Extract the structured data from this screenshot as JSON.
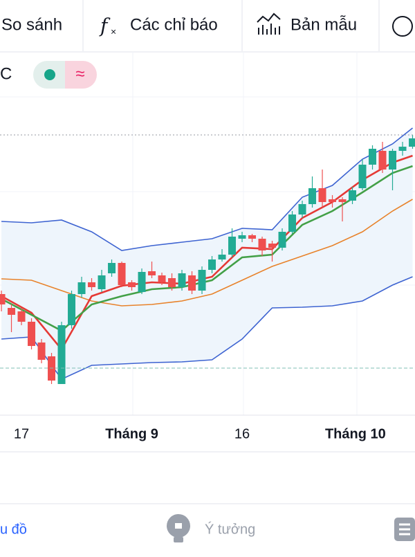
{
  "toolbar": {
    "items": [
      "So sánh",
      "Các chỉ báo",
      "Bản mẫu"
    ]
  },
  "legend": {
    "symbol": "C"
  },
  "chart_data": {
    "type": "candlestick",
    "up_color": "#22ab94",
    "down_color": "#ef4f4f",
    "xlim": [
      -0.14,
      41.24
    ],
    "ylim": [
      0,
      525
    ],
    "xticks": [
      {
        "value": 2,
        "label": "17"
      },
      {
        "value": 13,
        "label": "Tháng 9",
        "bold": true
      },
      {
        "value": 24,
        "label": "16"
      },
      {
        "value": 35.3,
        "label": "Tháng 10",
        "bold": true
      }
    ],
    "candles": [
      {
        "o": 175,
        "h": 180,
        "l": 150,
        "c": 160
      },
      {
        "o": 155,
        "h": 160,
        "l": 120,
        "c": 145
      },
      {
        "o": 150,
        "h": 155,
        "l": 130,
        "c": 135
      },
      {
        "o": 135,
        "h": 140,
        "l": 95,
        "c": 100
      },
      {
        "o": 105,
        "h": 110,
        "l": 75,
        "c": 80
      },
      {
        "o": 85,
        "h": 90,
        "l": 45,
        "c": 50
      },
      {
        "o": 45,
        "h": 135,
        "l": 45,
        "c": 130
      },
      {
        "o": 130,
        "h": 180,
        "l": 125,
        "c": 175
      },
      {
        "o": 175,
        "h": 200,
        "l": 170,
        "c": 192
      },
      {
        "o": 192,
        "h": 198,
        "l": 180,
        "c": 185
      },
      {
        "o": 182,
        "h": 210,
        "l": 178,
        "c": 202
      },
      {
        "o": 205,
        "h": 225,
        "l": 200,
        "c": 220
      },
      {
        "o": 220,
        "h": 222,
        "l": 185,
        "c": 188
      },
      {
        "o": 192,
        "h": 195,
        "l": 180,
        "c": 185
      },
      {
        "o": 178,
        "h": 212,
        "l": 175,
        "c": 207
      },
      {
        "o": 208,
        "h": 222,
        "l": 198,
        "c": 202
      },
      {
        "o": 202,
        "h": 206,
        "l": 188,
        "c": 192
      },
      {
        "o": 198,
        "h": 205,
        "l": 180,
        "c": 185
      },
      {
        "o": 185,
        "h": 210,
        "l": 180,
        "c": 205
      },
      {
        "o": 202,
        "h": 208,
        "l": 175,
        "c": 180
      },
      {
        "o": 180,
        "h": 215,
        "l": 175,
        "c": 210
      },
      {
        "o": 210,
        "h": 230,
        "l": 205,
        "c": 225
      },
      {
        "o": 225,
        "h": 240,
        "l": 222,
        "c": 232
      },
      {
        "o": 232,
        "h": 270,
        "l": 228,
        "c": 258
      },
      {
        "o": 255,
        "h": 265,
        "l": 250,
        "c": 260
      },
      {
        "o": 260,
        "h": 262,
        "l": 250,
        "c": 255
      },
      {
        "o": 255,
        "h": 258,
        "l": 230,
        "c": 238
      },
      {
        "o": 248,
        "h": 252,
        "l": 222,
        "c": 242
      },
      {
        "o": 242,
        "h": 270,
        "l": 238,
        "c": 265
      },
      {
        "o": 265,
        "h": 295,
        "l": 262,
        "c": 290
      },
      {
        "o": 290,
        "h": 310,
        "l": 285,
        "c": 305
      },
      {
        "o": 305,
        "h": 345,
        "l": 300,
        "c": 328
      },
      {
        "o": 328,
        "h": 355,
        "l": 300,
        "c": 308
      },
      {
        "o": 312,
        "h": 318,
        "l": 300,
        "c": 308
      },
      {
        "o": 312,
        "h": 315,
        "l": 280,
        "c": 308
      },
      {
        "o": 310,
        "h": 330,
        "l": 305,
        "c": 325
      },
      {
        "o": 328,
        "h": 370,
        "l": 325,
        "c": 362
      },
      {
        "o": 362,
        "h": 390,
        "l": 355,
        "c": 385
      },
      {
        "o": 382,
        "h": 395,
        "l": 350,
        "c": 355
      },
      {
        "o": 355,
        "h": 385,
        "l": 325,
        "c": 382
      },
      {
        "o": 382,
        "h": 395,
        "l": 375,
        "c": 388
      },
      {
        "o": 388,
        "h": 405,
        "l": 385,
        "c": 400
      }
    ],
    "x": [
      0,
      3,
      6,
      9,
      12,
      15,
      18,
      21,
      24,
      27,
      30,
      33,
      36,
      39,
      41
    ],
    "band_fill": "#eef5fc",
    "overlays": [
      {
        "color": "#3d63d1",
        "values": [
          280,
          278,
          282,
          265,
          238,
          245,
          250,
          255,
          270,
          268,
          315,
          332,
          370,
          392,
          415
        ]
      },
      {
        "color": "#3d63d1",
        "values": [
          110,
          113,
          52,
          72,
          74,
          76,
          77,
          80,
          110,
          155,
          156,
          158,
          165,
          188,
          200
        ]
      },
      {
        "color": "#e8822a",
        "values": [
          197,
          195,
          180,
          165,
          158,
          160,
          165,
          175,
          195,
          215,
          230,
          245,
          265,
          295,
          312
        ]
      },
      {
        "color": "#e53935",
        "values": [
          172,
          148,
          95,
          172,
          187,
          192,
          190,
          200,
          242,
          240,
          285,
          308,
          340,
          365,
          375
        ]
      },
      {
        "color": "#43a047",
        "values": [
          168,
          145,
          122,
          160,
          172,
          182,
          185,
          195,
          228,
          232,
          275,
          295,
          322,
          350,
          360
        ]
      }
    ]
  },
  "nav": {
    "items": [
      "u đồ",
      "Ý tưởng"
    ]
  }
}
